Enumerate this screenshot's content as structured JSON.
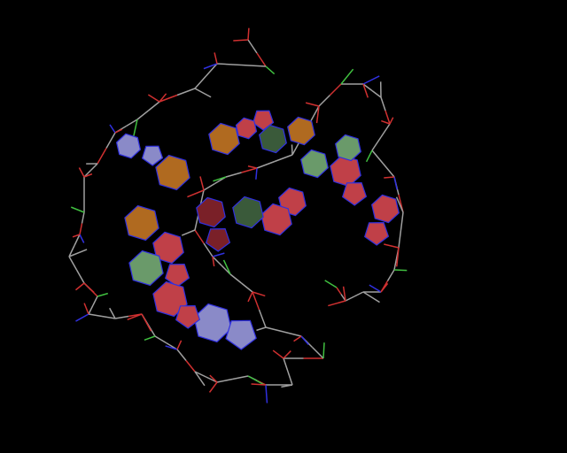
{
  "viewer": {
    "background": "#000000",
    "colors": {
      "backbone": "#a0a0a0",
      "oxygen": "#d03030",
      "nitrogen": "#3030e0",
      "phosphorus": "#40c040",
      "adenine": "#c04048",
      "adenine_dark": "#7a2028",
      "guanine": "#6a9a6a",
      "guanine_dark": "#3a5a3a",
      "cytosine": "#b06a20",
      "uracil": "#8a8ac8"
    }
  }
}
